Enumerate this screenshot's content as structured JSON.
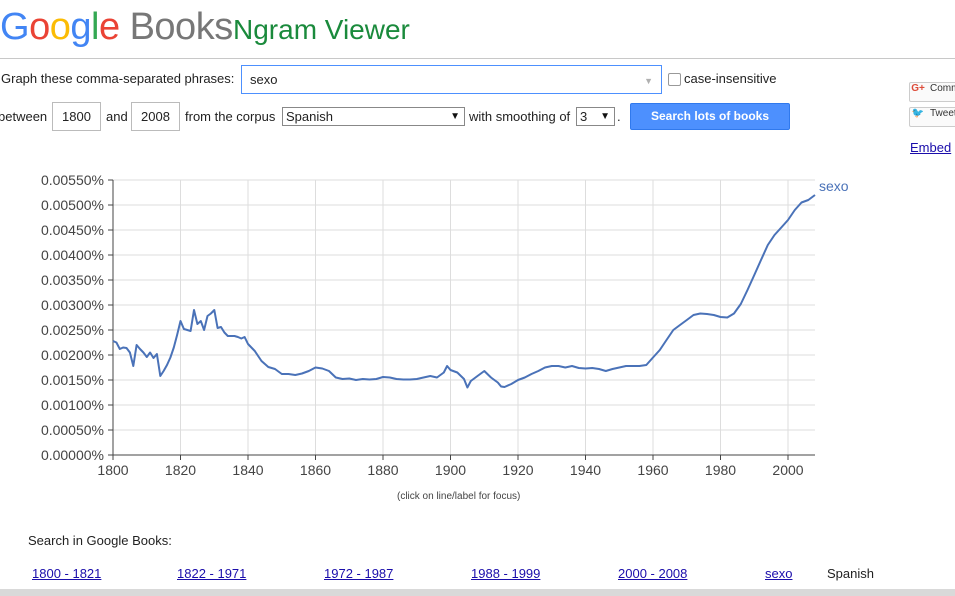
{
  "header": {
    "logo_google": "Google",
    "logo_books": "Books",
    "title": "Ngram Viewer"
  },
  "query": {
    "phrases_label": "Graph these comma-separated phrases:",
    "phrases_value": "sexo",
    "case_insensitive_label": "case-insensitive",
    "case_insensitive_checked": false,
    "between_label": "between",
    "year_start": "1800",
    "and_label": "and",
    "year_end": "2008",
    "corpus_label": "from the corpus",
    "corpus_value": "Spanish",
    "smoothing_label": "with smoothing of",
    "smoothing_value": "3",
    "smoothing_suffix": ".",
    "search_button": "Search lots of books"
  },
  "share": {
    "comment_label": "Comment",
    "tweet_label": "Tweet",
    "embed_label": "Embed"
  },
  "chart_data": {
    "type": "line",
    "title": "",
    "xlabel": "",
    "ylabel": "",
    "xlim": [
      1800,
      2008
    ],
    "ylim": [
      0,
      0.0055
    ],
    "x_ticks": [
      1800,
      1820,
      1840,
      1860,
      1880,
      1900,
      1920,
      1940,
      1960,
      1980,
      2000
    ],
    "y_ticks": [
      "0.00000%",
      "0.00050%",
      "0.00100%",
      "0.00150%",
      "0.00200%",
      "0.00250%",
      "0.00300%",
      "0.00350%",
      "0.00400%",
      "0.00450%",
      "0.00500%",
      "0.00550%"
    ],
    "grid": true,
    "note": "(click on line/label for focus)",
    "series": [
      {
        "name": "sexo",
        "color": "#4a72b8",
        "x": [
          1800,
          1801,
          1802,
          1803,
          1804,
          1805,
          1806,
          1807,
          1808,
          1809,
          1810,
          1811,
          1812,
          1813,
          1814,
          1815,
          1816,
          1817,
          1818,
          1819,
          1820,
          1821,
          1822,
          1823,
          1824,
          1825,
          1826,
          1827,
          1828,
          1829,
          1830,
          1831,
          1832,
          1833,
          1834,
          1835,
          1836,
          1837,
          1838,
          1839,
          1840,
          1842,
          1844,
          1846,
          1848,
          1850,
          1852,
          1854,
          1856,
          1858,
          1860,
          1862,
          1864,
          1866,
          1868,
          1870,
          1872,
          1874,
          1876,
          1878,
          1880,
          1882,
          1884,
          1886,
          1888,
          1890,
          1892,
          1894,
          1896,
          1898,
          1899,
          1900,
          1902,
          1904,
          1905,
          1906,
          1908,
          1910,
          1912,
          1914,
          1915,
          1916,
          1918,
          1920,
          1922,
          1924,
          1926,
          1928,
          1930,
          1932,
          1934,
          1936,
          1938,
          1940,
          1942,
          1944,
          1946,
          1948,
          1950,
          1952,
          1954,
          1956,
          1958,
          1960,
          1962,
          1964,
          1966,
          1968,
          1970,
          1972,
          1974,
          1976,
          1978,
          1980,
          1982,
          1984,
          1986,
          1988,
          1990,
          1992,
          1994,
          1996,
          1998,
          2000,
          2002,
          2004,
          2006,
          2008
        ],
        "values": [
          0.00228,
          0.00225,
          0.00212,
          0.00215,
          0.00214,
          0.00205,
          0.00178,
          0.0022,
          0.00212,
          0.00205,
          0.00196,
          0.00205,
          0.00194,
          0.00202,
          0.00158,
          0.00168,
          0.0018,
          0.00195,
          0.00215,
          0.0024,
          0.00268,
          0.00252,
          0.0025,
          0.00248,
          0.0029,
          0.00262,
          0.00268,
          0.0025,
          0.00278,
          0.00283,
          0.0029,
          0.00254,
          0.00256,
          0.00245,
          0.00238,
          0.00238,
          0.00238,
          0.00236,
          0.00233,
          0.00236,
          0.00222,
          0.00208,
          0.00188,
          0.00176,
          0.00172,
          0.00162,
          0.00162,
          0.0016,
          0.00163,
          0.00168,
          0.00175,
          0.00173,
          0.00168,
          0.00155,
          0.00152,
          0.00153,
          0.0015,
          0.00152,
          0.00151,
          0.00152,
          0.00156,
          0.00155,
          0.00152,
          0.00151,
          0.00151,
          0.00152,
          0.00155,
          0.00158,
          0.00155,
          0.00165,
          0.00178,
          0.0017,
          0.00165,
          0.00152,
          0.00135,
          0.00148,
          0.00158,
          0.00168,
          0.00155,
          0.00145,
          0.00137,
          0.00136,
          0.00142,
          0.0015,
          0.00155,
          0.00162,
          0.00168,
          0.00175,
          0.00178,
          0.00178,
          0.00175,
          0.00178,
          0.00174,
          0.00173,
          0.00174,
          0.00172,
          0.00168,
          0.00172,
          0.00175,
          0.00178,
          0.00178,
          0.00178,
          0.0018,
          0.00195,
          0.0021,
          0.0023,
          0.0025,
          0.0026,
          0.0027,
          0.0028,
          0.00283,
          0.00282,
          0.0028,
          0.00276,
          0.00275,
          0.00283,
          0.00302,
          0.0033,
          0.0036,
          0.0039,
          0.0042,
          0.0044,
          0.00455,
          0.0047,
          0.0049,
          0.00505,
          0.0051,
          0.0052
        ]
      }
    ]
  },
  "search_in_books": {
    "heading": "Search in Google Books:",
    "ranges": [
      "1800 - 1821",
      "1822 - 1971",
      "1972 - 1987",
      "1988 - 1999",
      "2000 - 2008"
    ],
    "term": "sexo",
    "corpus": "Spanish"
  }
}
